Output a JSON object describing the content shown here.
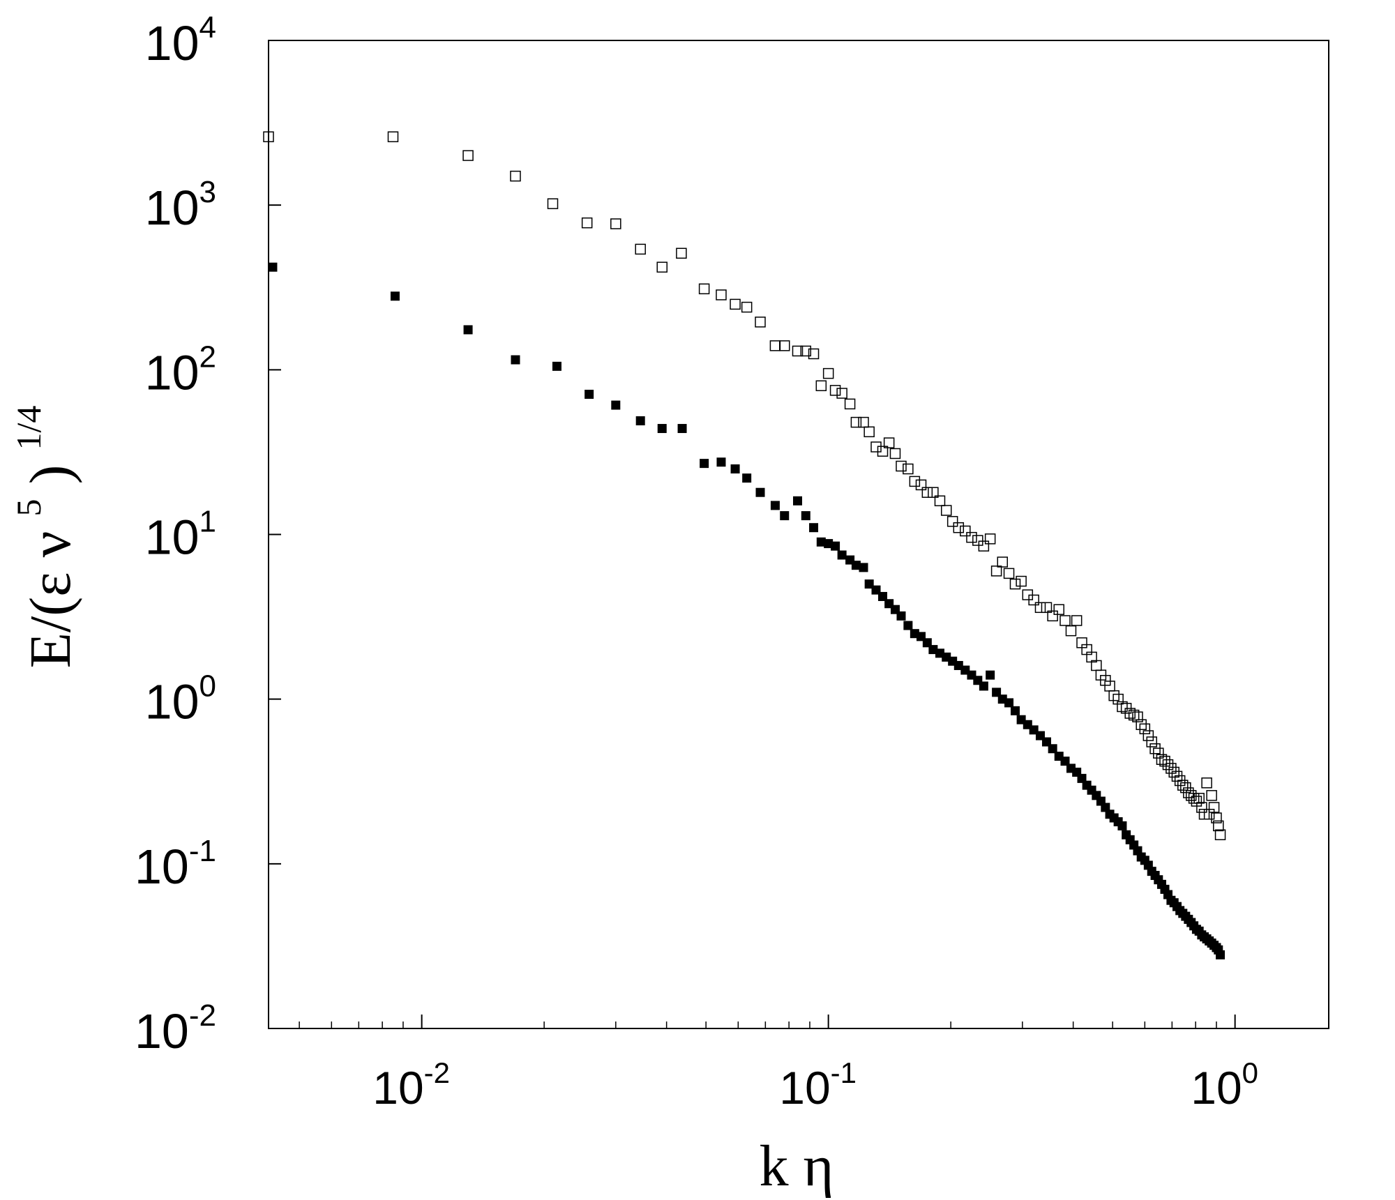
{
  "chart_data": {
    "type": "scatter",
    "title": "",
    "xlabel": {
      "main": "k η"
    },
    "ylabel": {
      "prefix": "E/(ε ν",
      "exp_inner": "5",
      "suffix": ")",
      "exp_outer": "1/4"
    },
    "x_scale": "log",
    "y_scale": "log",
    "xlim": [
      0.0042,
      1.7
    ],
    "ylim": [
      0.01,
      10000
    ],
    "grid": false,
    "legend": "none",
    "x_ticks": [
      {
        "value": 0.01,
        "base": "10",
        "exp": "-2"
      },
      {
        "value": 0.1,
        "base": "10",
        "exp": "-1"
      },
      {
        "value": 1,
        "base": "10",
        "exp": "0"
      }
    ],
    "y_ticks": [
      {
        "value": 0.01,
        "base": "10",
        "exp": "-2"
      },
      {
        "value": 0.1,
        "base": "10",
        "exp": "-1"
      },
      {
        "value": 1,
        "base": "10",
        "exp": "0"
      },
      {
        "value": 10,
        "base": "10",
        "exp": "1"
      },
      {
        "value": 100,
        "base": "10",
        "exp": "2"
      },
      {
        "value": 1000,
        "base": "10",
        "exp": "3"
      },
      {
        "value": 10000,
        "base": "10",
        "exp": "4"
      }
    ],
    "series": [
      {
        "marker": "open-square",
        "color": "#000000",
        "points": [
          [
            0.0042,
            2600
          ],
          [
            0.0085,
            2600
          ],
          [
            0.013,
            2000
          ],
          [
            0.017,
            1500
          ],
          [
            0.021,
            1020
          ],
          [
            0.0255,
            780
          ],
          [
            0.03,
            770
          ],
          [
            0.0345,
            540
          ],
          [
            0.039,
            420
          ],
          [
            0.0435,
            510
          ],
          [
            0.0495,
            310
          ],
          [
            0.0545,
            285
          ],
          [
            0.059,
            250
          ],
          [
            0.063,
            240
          ],
          [
            0.068,
            195
          ],
          [
            0.074,
            140
          ],
          [
            0.078,
            140
          ],
          [
            0.084,
            130
          ],
          [
            0.088,
            130
          ],
          [
            0.092,
            125
          ],
          [
            0.096,
            80
          ],
          [
            0.1,
            95
          ],
          [
            0.104,
            75
          ],
          [
            0.108,
            72
          ],
          [
            0.113,
            62
          ],
          [
            0.117,
            48
          ],
          [
            0.122,
            48
          ],
          [
            0.126,
            42
          ],
          [
            0.131,
            34
          ],
          [
            0.136,
            32
          ],
          [
            0.141,
            36
          ],
          [
            0.146,
            31
          ],
          [
            0.151,
            26
          ],
          [
            0.157,
            25
          ],
          [
            0.163,
            21
          ],
          [
            0.169,
            20
          ],
          [
            0.175,
            18
          ],
          [
            0.181,
            18
          ],
          [
            0.188,
            16
          ],
          [
            0.195,
            14
          ],
          [
            0.202,
            12
          ],
          [
            0.209,
            11
          ],
          [
            0.217,
            10.5
          ],
          [
            0.225,
            9.6
          ],
          [
            0.233,
            9.2
          ],
          [
            0.241,
            8.5
          ],
          [
            0.25,
            9.4
          ],
          [
            0.259,
            6
          ],
          [
            0.268,
            6.8
          ],
          [
            0.278,
            5.8
          ],
          [
            0.288,
            5.0
          ],
          [
            0.298,
            5.2
          ],
          [
            0.309,
            4.3
          ],
          [
            0.32,
            4.0
          ],
          [
            0.332,
            3.6
          ],
          [
            0.344,
            3.6
          ],
          [
            0.356,
            3.2
          ],
          [
            0.369,
            3.5
          ],
          [
            0.382,
            3.0
          ],
          [
            0.395,
            2.6
          ],
          [
            0.408,
            3.0
          ],
          [
            0.42,
            2.2
          ],
          [
            0.432,
            2.0
          ],
          [
            0.444,
            1.8
          ],
          [
            0.456,
            1.6
          ],
          [
            0.468,
            1.4
          ],
          [
            0.48,
            1.3
          ],
          [
            0.492,
            1.2
          ],
          [
            0.504,
            1.05
          ],
          [
            0.516,
            1.0
          ],
          [
            0.528,
            0.9
          ],
          [
            0.54,
            0.88
          ],
          [
            0.552,
            0.82
          ],
          [
            0.564,
            0.8
          ],
          [
            0.576,
            0.78
          ],
          [
            0.588,
            0.7
          ],
          [
            0.6,
            0.66
          ],
          [
            0.612,
            0.6
          ],
          [
            0.624,
            0.55
          ],
          [
            0.636,
            0.5
          ],
          [
            0.648,
            0.47
          ],
          [
            0.66,
            0.43
          ],
          [
            0.672,
            0.42
          ],
          [
            0.684,
            0.4
          ],
          [
            0.696,
            0.38
          ],
          [
            0.708,
            0.36
          ],
          [
            0.72,
            0.34
          ],
          [
            0.732,
            0.32
          ],
          [
            0.744,
            0.3
          ],
          [
            0.756,
            0.29
          ],
          [
            0.768,
            0.27
          ],
          [
            0.78,
            0.26
          ],
          [
            0.792,
            0.25
          ],
          [
            0.804,
            0.24
          ],
          [
            0.816,
            0.25
          ],
          [
            0.828,
            0.22
          ],
          [
            0.84,
            0.2
          ],
          [
            0.852,
            0.31
          ],
          [
            0.864,
            0.2
          ],
          [
            0.876,
            0.26
          ],
          [
            0.888,
            0.22
          ],
          [
            0.9,
            0.19
          ],
          [
            0.91,
            0.17
          ],
          [
            0.92,
            0.15
          ]
        ]
      },
      {
        "marker": "filled-square",
        "color": "#000000",
        "points": [
          [
            0.0043,
            420
          ],
          [
            0.0086,
            280
          ],
          [
            0.013,
            175
          ],
          [
            0.017,
            115
          ],
          [
            0.0215,
            105
          ],
          [
            0.0258,
            71
          ],
          [
            0.03,
            61
          ],
          [
            0.0345,
            49
          ],
          [
            0.039,
            44
          ],
          [
            0.0437,
            44
          ],
          [
            0.0495,
            27
          ],
          [
            0.0545,
            27.5
          ],
          [
            0.059,
            25
          ],
          [
            0.063,
            22
          ],
          [
            0.068,
            18
          ],
          [
            0.074,
            15
          ],
          [
            0.078,
            13
          ],
          [
            0.084,
            16
          ],
          [
            0.088,
            13
          ],
          [
            0.092,
            11
          ],
          [
            0.096,
            9
          ],
          [
            0.1,
            8.8
          ],
          [
            0.104,
            8.5
          ],
          [
            0.108,
            7.5
          ],
          [
            0.113,
            7.0
          ],
          [
            0.117,
            6.5
          ],
          [
            0.122,
            6.3
          ],
          [
            0.126,
            5.0
          ],
          [
            0.131,
            4.6
          ],
          [
            0.136,
            4.2
          ],
          [
            0.141,
            3.8
          ],
          [
            0.146,
            3.5
          ],
          [
            0.151,
            3.2
          ],
          [
            0.157,
            2.8
          ],
          [
            0.163,
            2.5
          ],
          [
            0.169,
            2.4
          ],
          [
            0.175,
            2.2
          ],
          [
            0.181,
            2.0
          ],
          [
            0.188,
            1.9
          ],
          [
            0.195,
            1.8
          ],
          [
            0.202,
            1.7
          ],
          [
            0.209,
            1.6
          ],
          [
            0.217,
            1.5
          ],
          [
            0.225,
            1.4
          ],
          [
            0.233,
            1.3
          ],
          [
            0.241,
            1.2
          ],
          [
            0.25,
            1.4
          ],
          [
            0.259,
            1.1
          ],
          [
            0.268,
            1.0
          ],
          [
            0.278,
            0.95
          ],
          [
            0.288,
            0.85
          ],
          [
            0.298,
            0.75
          ],
          [
            0.309,
            0.7
          ],
          [
            0.32,
            0.65
          ],
          [
            0.332,
            0.6
          ],
          [
            0.344,
            0.55
          ],
          [
            0.356,
            0.5
          ],
          [
            0.369,
            0.45
          ],
          [
            0.382,
            0.42
          ],
          [
            0.395,
            0.38
          ],
          [
            0.408,
            0.36
          ],
          [
            0.42,
            0.33
          ],
          [
            0.432,
            0.3
          ],
          [
            0.444,
            0.28
          ],
          [
            0.456,
            0.26
          ],
          [
            0.468,
            0.24
          ],
          [
            0.48,
            0.22
          ],
          [
            0.492,
            0.2
          ],
          [
            0.504,
            0.19
          ],
          [
            0.516,
            0.18
          ],
          [
            0.528,
            0.17
          ],
          [
            0.54,
            0.15
          ],
          [
            0.552,
            0.14
          ],
          [
            0.564,
            0.13
          ],
          [
            0.576,
            0.12
          ],
          [
            0.588,
            0.11
          ],
          [
            0.6,
            0.105
          ],
          [
            0.612,
            0.098
          ],
          [
            0.624,
            0.09
          ],
          [
            0.636,
            0.085
          ],
          [
            0.648,
            0.08
          ],
          [
            0.66,
            0.075
          ],
          [
            0.672,
            0.07
          ],
          [
            0.684,
            0.065
          ],
          [
            0.696,
            0.06
          ],
          [
            0.708,
            0.058
          ],
          [
            0.72,
            0.055
          ],
          [
            0.732,
            0.052
          ],
          [
            0.744,
            0.05
          ],
          [
            0.756,
            0.048
          ],
          [
            0.768,
            0.046
          ],
          [
            0.78,
            0.044
          ],
          [
            0.792,
            0.042
          ],
          [
            0.804,
            0.04
          ],
          [
            0.816,
            0.039
          ],
          [
            0.828,
            0.037
          ],
          [
            0.84,
            0.036
          ],
          [
            0.852,
            0.035
          ],
          [
            0.864,
            0.034
          ],
          [
            0.876,
            0.033
          ],
          [
            0.888,
            0.032
          ],
          [
            0.9,
            0.031
          ],
          [
            0.91,
            0.03
          ],
          [
            0.92,
            0.028
          ]
        ]
      }
    ]
  }
}
